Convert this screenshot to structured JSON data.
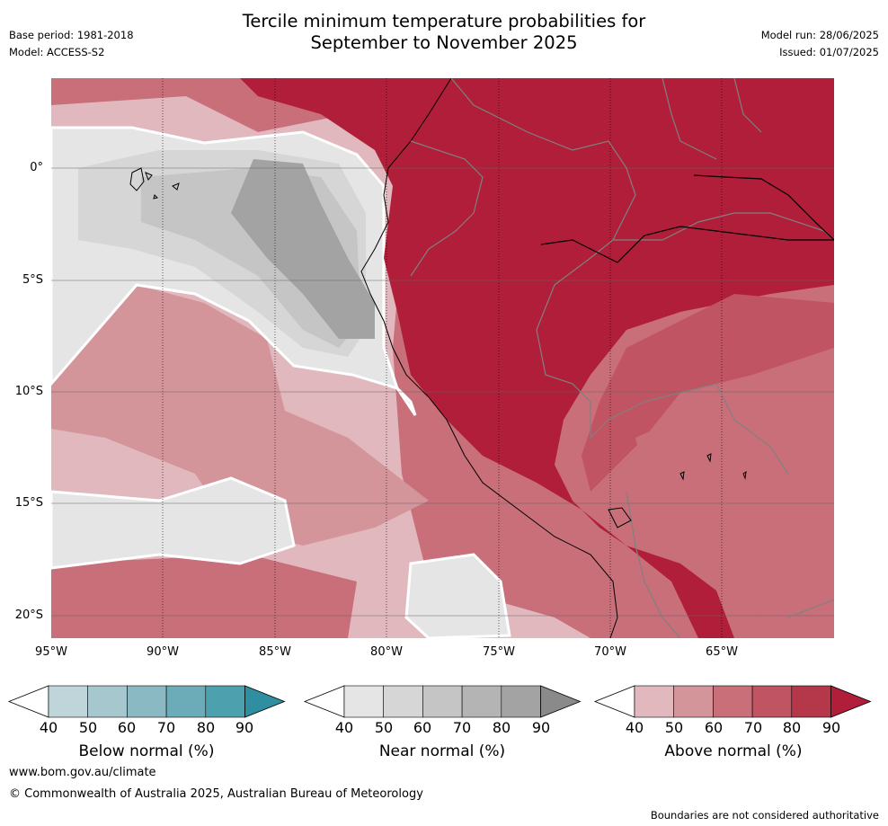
{
  "title_line1": "Tercile minimum temperature probabilities for",
  "title_line2": "September to November 2025",
  "base_period": "Base period: 1981-2018",
  "model": "Model: ACCESS-S2",
  "model_run": "Model run: 28/06/2025",
  "issued": "Issued: 01/07/2025",
  "lat_labels": [
    "0°",
    "5°S",
    "10°S",
    "15°S",
    "20°S"
  ],
  "lon_labels": [
    "95°W",
    "90°W",
    "85°W",
    "80°W",
    "75°W",
    "70°W",
    "65°W"
  ],
  "colorbars": [
    {
      "title": "Below normal (%)",
      "ticks": [
        "40",
        "50",
        "60",
        "70",
        "80",
        "90"
      ],
      "colors": [
        "#bfd5da",
        "#a7c7ce",
        "#8ab9c3",
        "#6cacb8",
        "#4da0ae",
        "#2f8fa1"
      ]
    },
    {
      "title": "Near normal (%)",
      "ticks": [
        "40",
        "50",
        "60",
        "70",
        "80",
        "90"
      ],
      "colors": [
        "#e5e5e5",
        "#d6d6d6",
        "#c5c5c5",
        "#b4b4b4",
        "#a3a3a3",
        "#8a8a8a"
      ]
    },
    {
      "title": "Above normal (%)",
      "ticks": [
        "40",
        "50",
        "60",
        "70",
        "80",
        "90"
      ],
      "colors": [
        "#e0b8bd",
        "#d3949a",
        "#c86f79",
        "#c05462",
        "#b5374a",
        "#b01e3a"
      ]
    }
  ],
  "website": "www.bom.gov.au/climate",
  "copyright": "© Commonwealth of Australia 2025, Australian Bureau of Meteorology",
  "disclaimer": "Boundaries are not considered authoritative"
}
